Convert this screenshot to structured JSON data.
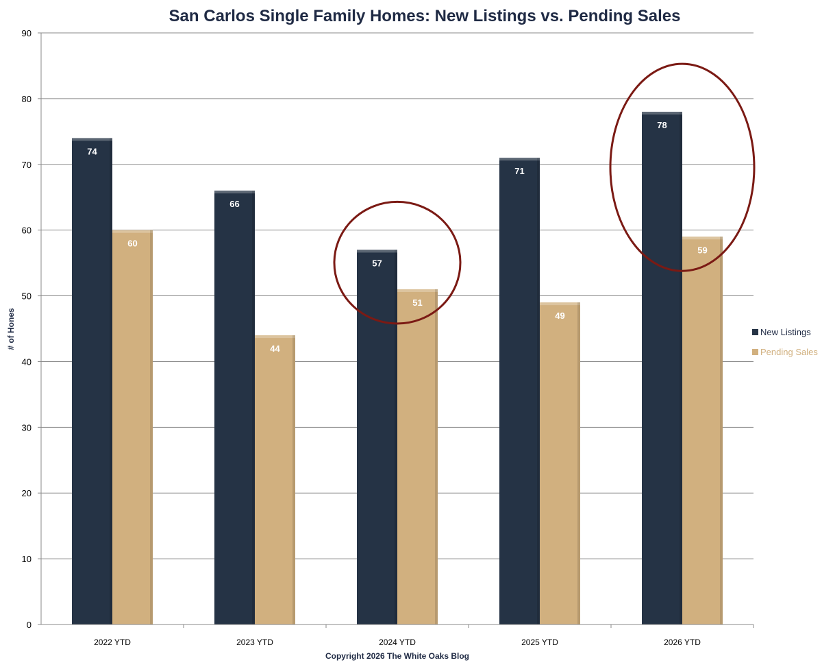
{
  "chart_data": {
    "type": "bar",
    "title": "San Carlos Single Family Homes: New Listings vs. Pending Sales",
    "xlabel": "Copyright 2026 The White Oaks Blog",
    "ylabel": "# of Hones",
    "categories": [
      "2022 YTD",
      "2023 YTD",
      "2024 YTD",
      "2025 YTD",
      "2026 YTD"
    ],
    "series": [
      {
        "name": "New Listings",
        "values": [
          74,
          66,
          57,
          71,
          78
        ],
        "color": "#253345",
        "label_color": "#ffffff"
      },
      {
        "name": "Pending Sales",
        "values": [
          60,
          44,
          51,
          49,
          59
        ],
        "color": "#d1b07f",
        "label_color": "#ffffff"
      }
    ],
    "ylim": [
      0,
      90
    ],
    "yticks": [
      0,
      10,
      20,
      30,
      40,
      50,
      60,
      70,
      80,
      90
    ],
    "grid": true,
    "legend_position": "right",
    "annotations": [
      {
        "type": "ellipse",
        "category": "2024 YTD",
        "color": "#7b1a14"
      },
      {
        "type": "ellipse",
        "category": "2026 YTD",
        "color": "#7b1a14"
      }
    ]
  }
}
